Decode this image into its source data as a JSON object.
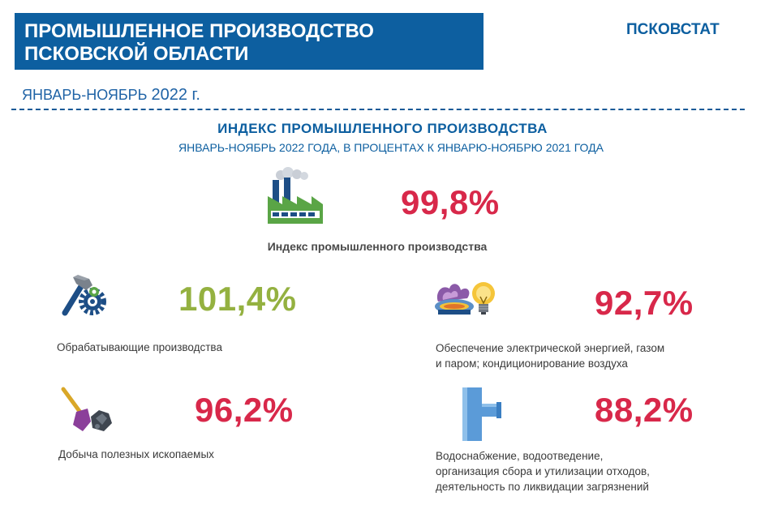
{
  "header": {
    "title_line1": "ПРОМЫШЛЕННОЕ ПРОИЗВОДСТВО",
    "title_line2": "ПСКОВСКОЙ ОБЛАСТИ",
    "organization": "ПСКОВСТАТ",
    "period_text": "ЯНВАРЬ-НОЯБРЬ",
    "period_year": "2022 г."
  },
  "section": {
    "heading": "ИНДЕКС  ПРОМЫШЛЕННОГО  ПРОИЗВОДСТВА",
    "subheading": "ЯНВАРЬ-НОЯБРЬ 2022 ГОДА, В ПРОЦЕНТАХ К ЯНВАРЮ-НОЯБРЮ 2021 ГОДА"
  },
  "main_index": {
    "value": "99,8%",
    "label": "Индекс промышленного производства",
    "icon": "factory-icon",
    "color": "#d8284a"
  },
  "sectors": [
    {
      "value": "101,4%",
      "label_lines": [
        "Обрабатывающие производства"
      ],
      "icon": "hammer-gear-icon",
      "color": "#94b140"
    },
    {
      "value": "92,7%",
      "label_lines": [
        "Обеспечение  электрической энергией, газом",
        "и паром; кондиционирование  воздуха"
      ],
      "icon": "gas-flame-lightbulb-icon",
      "color": "#d8284a"
    },
    {
      "value": "96,2%",
      "label_lines": [
        "Добыча полезных ископаемых"
      ],
      "icon": "shovel-coal-icon",
      "color": "#d8284a"
    },
    {
      "value": "88,2%",
      "label_lines": [
        "Водоснабжение,  водоотведение,",
        "организация сбора и утилизации  отходов,",
        "деятельность по ликвидации  загрязнений"
      ],
      "icon": "water-pipe-icon",
      "color": "#d8284a"
    }
  ]
}
